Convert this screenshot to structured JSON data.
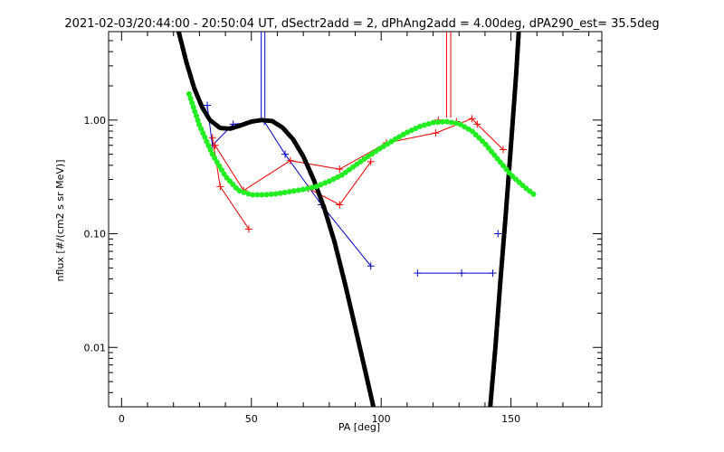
{
  "chart_data": {
    "type": "line",
    "title": "2021-02-03/20:44:00 - 20:50:04 UT, dSectr2add = 2, dPhAng2add = 4.00deg, dPA290_est=  35.5deg",
    "xlabel": "PA [deg]",
    "ylabel": "nflux [#/(cm2 s sr MeV)]",
    "xlim": [
      -5,
      185
    ],
    "ylim": [
      0.003,
      6
    ],
    "ylog": true,
    "grid": false,
    "x_ticks": [
      0,
      50,
      100,
      150
    ],
    "x_tick_labels": [
      "0",
      "50",
      "100",
      "150"
    ],
    "y_ticks": [
      0.01,
      0.1,
      1.0
    ],
    "y_tick_labels": [
      "0.01",
      "0.10",
      "1.00"
    ],
    "colors": {
      "blue": "#0000cc",
      "red": "#ee0000",
      "black": "#000000",
      "green": "#22ee22"
    },
    "series": [
      {
        "color": "#0000cc",
        "style": "line-plus",
        "x": [
          33,
          35,
          43,
          55,
          63,
          77,
          96
        ],
        "y": [
          1.35,
          0.6,
          0.92,
          0.97,
          0.5,
          0.18,
          0.052
        ]
      },
      {
        "color": "#0000cc",
        "style": "line-plus",
        "x": [
          114,
          131,
          143
        ],
        "y": [
          0.045,
          0.045,
          0.045
        ]
      },
      {
        "color": "#0000cc",
        "style": "plus",
        "x": [
          145
        ],
        "y": [
          0.1
        ]
      },
      {
        "color": "#ee0000",
        "style": "line-plus",
        "x": [
          35,
          38,
          49
        ],
        "y": [
          0.7,
          0.26,
          0.11
        ]
      },
      {
        "color": "#ee0000",
        "style": "line-plus",
        "x": [
          36,
          47,
          65,
          84,
          102,
          121,
          135,
          137,
          147
        ],
        "y": [
          0.6,
          0.24,
          0.44,
          0.37,
          0.63,
          0.77,
          1.03,
          0.92,
          0.55
        ]
      },
      {
        "color": "#ee0000",
        "style": "line-plus",
        "x": [
          72,
          84,
          96
        ],
        "y": [
          0.25,
          0.18,
          0.43
        ]
      },
      {
        "color": "#ee0000",
        "style": "line-plus",
        "x": [
          122,
          129
        ],
        "y": [
          1.0,
          0.97
        ]
      },
      {
        "color": "#000000",
        "style": "thick-dashed",
        "x": [
          22,
          25,
          28,
          31,
          34,
          38,
          42,
          46,
          50,
          54,
          58,
          62,
          66,
          70,
          74,
          78,
          82,
          86,
          90,
          94,
          97
        ],
        "y": [
          6,
          3.2,
          1.9,
          1.3,
          1.0,
          0.85,
          0.84,
          0.9,
          0.97,
          1.0,
          0.98,
          0.86,
          0.68,
          0.48,
          0.3,
          0.17,
          0.085,
          0.037,
          0.015,
          0.006,
          0.003
        ]
      },
      {
        "color": "#000000",
        "style": "thick-dashed",
        "x": [
          142,
          144,
          146,
          148,
          150,
          152,
          153
        ],
        "y": [
          0.003,
          0.01,
          0.04,
          0.15,
          0.6,
          2.5,
          6
        ]
      },
      {
        "color": "#22ee22",
        "style": "thick-dotted",
        "x": [
          26,
          30,
          35,
          40,
          45,
          50,
          55,
          60,
          65,
          70,
          75,
          80,
          85,
          90,
          95,
          100,
          105,
          110,
          115,
          120,
          125,
          130,
          135,
          140,
          145,
          150,
          155,
          159
        ],
        "y": [
          1.7,
          0.9,
          0.5,
          0.32,
          0.24,
          0.22,
          0.22,
          0.225,
          0.235,
          0.245,
          0.26,
          0.29,
          0.33,
          0.4,
          0.48,
          0.57,
          0.67,
          0.78,
          0.88,
          0.95,
          0.97,
          0.93,
          0.8,
          0.62,
          0.45,
          0.33,
          0.26,
          0.22
        ]
      }
    ],
    "vertical_markers": [
      {
        "color": "#0000cc",
        "x": 53.8,
        "y_from": 1.05,
        "y_to": 6
      },
      {
        "color": "#0000cc",
        "x": 55.2,
        "y_from": 1.05,
        "y_to": 6
      },
      {
        "color": "#ee0000",
        "x": 125.2,
        "y_from": 1.05,
        "y_to": 6
      },
      {
        "color": "#ee0000",
        "x": 126.8,
        "y_from": 1.05,
        "y_to": 6
      }
    ]
  }
}
